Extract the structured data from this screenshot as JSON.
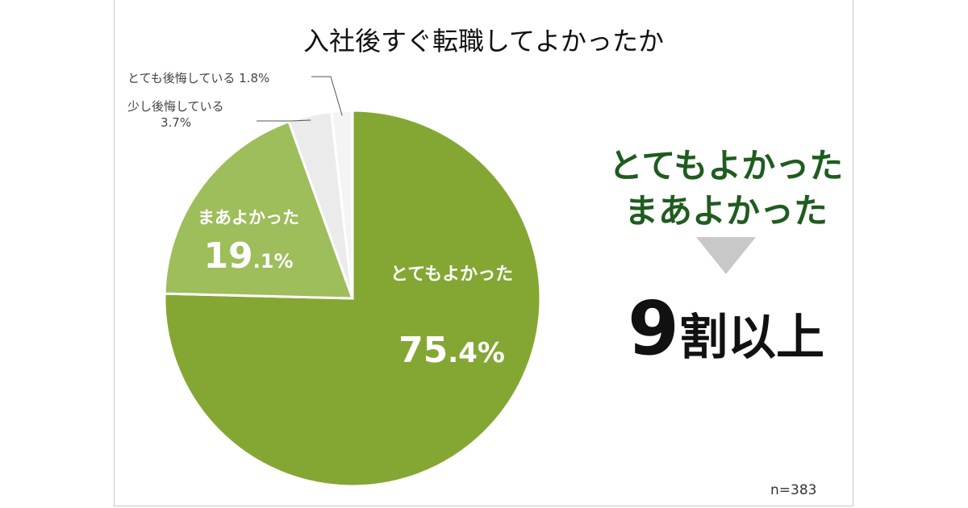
{
  "chart_data": {
    "type": "pie",
    "title": "入社後すぐ転職してよかったか",
    "slices": [
      {
        "label": "とてもよかった",
        "value": 75.4,
        "value_int": "75",
        "value_dec": ".4%",
        "color": "#84a734"
      },
      {
        "label": "まあよかった",
        "value": 19.1,
        "value_int": "19",
        "value_dec": ".1%",
        "color": "#9ebd5b"
      },
      {
        "label": "少し後悔している",
        "value": 3.7,
        "value_text": "3.7%",
        "color": "#ebebeb"
      },
      {
        "label": "とても後悔している",
        "value": 1.8,
        "value_text": "1.8%",
        "color": "#f4f4f4"
      }
    ],
    "start_angle_deg": 0,
    "direction": "clockwise"
  },
  "callout": {
    "line1": "とてもよかった",
    "line2": "まあよかった",
    "result_number": "9",
    "result_text": "割以上",
    "text_color": "#1f5c1f",
    "arrow_color": "#c8c8c8"
  },
  "sample_note": "n=383"
}
